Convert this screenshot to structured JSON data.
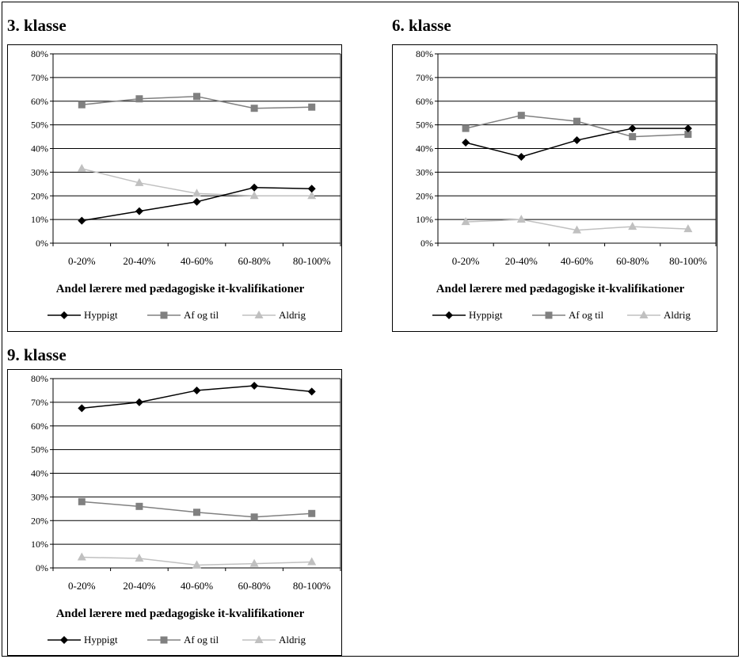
{
  "chart_data": [
    {
      "type": "line",
      "title": "3. klasse",
      "categories": [
        "0-20%",
        "20-40%",
        "40-60%",
        "60-80%",
        "80-100%"
      ],
      "xlabel": "Andel lærere med pædagogiske it-kvalifikationer",
      "ylabel": "",
      "ylim": [
        0,
        80
      ],
      "yticks": [
        "0%",
        "10%",
        "20%",
        "30%",
        "40%",
        "50%",
        "60%",
        "70%",
        "80%"
      ],
      "grid": true,
      "legend_position": "bottom",
      "series": [
        {
          "name": "Hyppigt",
          "values": [
            9.5,
            13.5,
            17.5,
            23.5,
            23
          ],
          "color": "#000000",
          "marker": "diamond"
        },
        {
          "name": "Af og til",
          "values": [
            58.5,
            61,
            62,
            57,
            57.5
          ],
          "color": "#808080",
          "marker": "square"
        },
        {
          "name": "Aldrig",
          "values": [
            31.5,
            25.5,
            21,
            20,
            20
          ],
          "color": "#c0c0c0",
          "marker": "triangle"
        }
      ]
    },
    {
      "type": "line",
      "title": "6. klasse",
      "categories": [
        "0-20%",
        "20-40%",
        "40-60%",
        "60-80%",
        "80-100%"
      ],
      "xlabel": "Andel lærere med pædagogiske it-kvalifikationer",
      "ylabel": "",
      "ylim": [
        0,
        80
      ],
      "yticks": [
        "0%",
        "10%",
        "20%",
        "30%",
        "40%",
        "50%",
        "60%",
        "70%",
        "80%"
      ],
      "grid": true,
      "legend_position": "bottom",
      "series": [
        {
          "name": "Hyppigt",
          "values": [
            42.5,
            36.5,
            43.5,
            48.5,
            48.5
          ],
          "color": "#000000",
          "marker": "diamond"
        },
        {
          "name": "Af og til",
          "values": [
            48.5,
            54,
            51.5,
            45,
            46
          ],
          "color": "#808080",
          "marker": "square"
        },
        {
          "name": "Aldrig",
          "values": [
            9,
            10,
            5.5,
            7,
            6
          ],
          "color": "#c0c0c0",
          "marker": "triangle"
        }
      ]
    },
    {
      "type": "line",
      "title": "9. klasse",
      "categories": [
        "0-20%",
        "20-40%",
        "40-60%",
        "60-80%",
        "80-100%"
      ],
      "xlabel": "Andel lærere med pædagogiske it-kvalifikationer",
      "ylabel": "",
      "ylim": [
        0,
        80
      ],
      "yticks": [
        "0%",
        "10%",
        "20%",
        "30%",
        "40%",
        "50%",
        "60%",
        "70%",
        "80%"
      ],
      "grid": true,
      "legend_position": "bottom",
      "series": [
        {
          "name": "Hyppigt",
          "values": [
            67.5,
            70,
            75,
            77,
            74.5
          ],
          "color": "#000000",
          "marker": "diamond"
        },
        {
          "name": "Af og til",
          "values": [
            28,
            26,
            23.5,
            21.5,
            23
          ],
          "color": "#808080",
          "marker": "square"
        },
        {
          "name": "Aldrig",
          "values": [
            4.5,
            4,
            1.2,
            1.8,
            2.5
          ],
          "color": "#c0c0c0",
          "marker": "triangle"
        }
      ]
    }
  ]
}
